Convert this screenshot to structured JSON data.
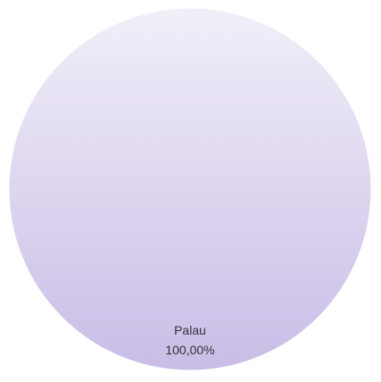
{
  "chart_data": {
    "type": "pie",
    "categories": [
      "Palau"
    ],
    "values": [
      100
    ],
    "value_labels": [
      "100,00%"
    ],
    "colors": [
      "#c9bde6"
    ]
  }
}
